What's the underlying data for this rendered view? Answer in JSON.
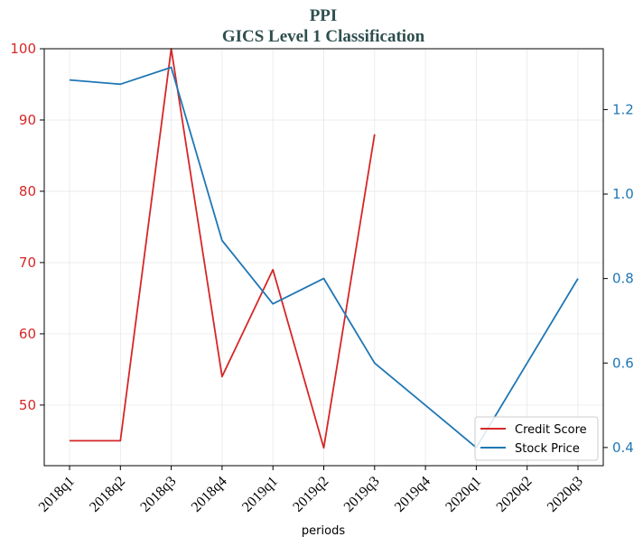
{
  "chart_data": {
    "type": "line",
    "title": "PPI",
    "subtitle": "GICS Level 1 Classification",
    "xlabel": "periods",
    "categories": [
      "2018q1",
      "2018q2",
      "2018q3",
      "2018q4",
      "2019q1",
      "2019q2",
      "2019q3",
      "2019q4",
      "2020q1",
      "2020q2",
      "2020q3"
    ],
    "y_left": {
      "ylim": [
        41.5,
        100
      ],
      "ticks": [
        50,
        60,
        70,
        80,
        90,
        100
      ],
      "color": "#d62728"
    },
    "y_right": {
      "ylim": [
        0.357,
        1.344
      ],
      "ticks": [
        "0.4",
        "0.6",
        "0.8",
        "1.0",
        "1.2"
      ],
      "color": "#1f77b4"
    },
    "grid": true,
    "legend_position": "lower-right",
    "series": [
      {
        "name": "Credit Score",
        "axis": "left",
        "color": "#d62728",
        "values": [
          45,
          45,
          100,
          54,
          69,
          44,
          88,
          null,
          null,
          null,
          null
        ]
      },
      {
        "name": "Stock Price",
        "axis": "right",
        "color": "#1f77b4",
        "values": [
          1.27,
          1.26,
          1.3,
          0.89,
          0.74,
          0.8,
          0.6,
          0.5,
          0.4,
          0.6,
          0.8
        ]
      }
    ]
  }
}
